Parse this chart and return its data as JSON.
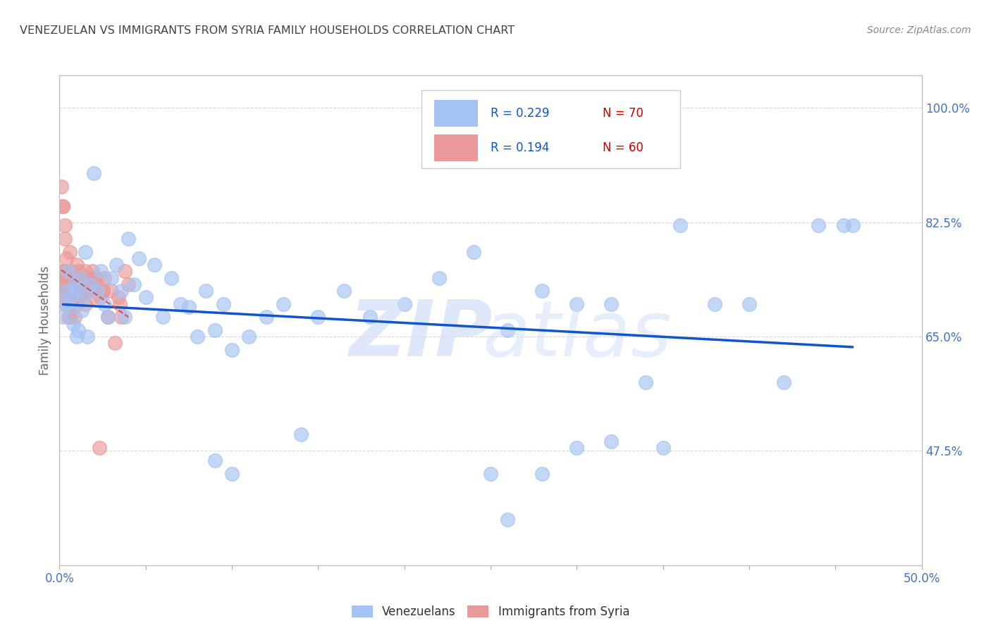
{
  "title": "VENEZUELAN VS IMMIGRANTS FROM SYRIA FAMILY HOUSEHOLDS CORRELATION CHART",
  "source": "Source: ZipAtlas.com",
  "ylabel": "Family Households",
  "yticks": [
    "47.5%",
    "65.0%",
    "82.5%",
    "100.0%"
  ],
  "ytick_vals": [
    0.475,
    0.65,
    0.825,
    1.0
  ],
  "xlim": [
    0.0,
    0.5
  ],
  "ylim": [
    0.3,
    1.05
  ],
  "legend_r1": "R = 0.229",
  "legend_n1": "N = 70",
  "legend_r2": "R = 0.194",
  "legend_n2": "N = 60",
  "blue_color": "#a4c2f4",
  "pink_color": "#ea9999",
  "blue_line_color": "#1155cc",
  "pink_line_color": "#cc4444",
  "title_color": "#434343",
  "grid_color": "#cccccc",
  "venezuelans_x": [
    0.002,
    0.003,
    0.004,
    0.005,
    0.006,
    0.007,
    0.008,
    0.009,
    0.01,
    0.01,
    0.011,
    0.012,
    0.013,
    0.014,
    0.015,
    0.016,
    0.018,
    0.02,
    0.022,
    0.024,
    0.026,
    0.028,
    0.03,
    0.033,
    0.036,
    0.038,
    0.04,
    0.043,
    0.046,
    0.05,
    0.055,
    0.06,
    0.065,
    0.07,
    0.075,
    0.08,
    0.085,
    0.09,
    0.095,
    0.1,
    0.11,
    0.12,
    0.13,
    0.14,
    0.15,
    0.165,
    0.18,
    0.2,
    0.22,
    0.24,
    0.26,
    0.28,
    0.3,
    0.32,
    0.34,
    0.36,
    0.38,
    0.4,
    0.42,
    0.44,
    0.455,
    0.46,
    0.09,
    0.1,
    0.25,
    0.26,
    0.28,
    0.3,
    0.32,
    0.35
  ],
  "venezuelans_y": [
    0.68,
    0.7,
    0.72,
    0.75,
    0.695,
    0.71,
    0.67,
    0.73,
    0.65,
    0.72,
    0.66,
    0.74,
    0.69,
    0.71,
    0.78,
    0.65,
    0.73,
    0.9,
    0.72,
    0.75,
    0.7,
    0.68,
    0.74,
    0.76,
    0.72,
    0.68,
    0.8,
    0.73,
    0.77,
    0.71,
    0.76,
    0.68,
    0.74,
    0.7,
    0.695,
    0.65,
    0.72,
    0.66,
    0.7,
    0.63,
    0.65,
    0.68,
    0.7,
    0.5,
    0.68,
    0.72,
    0.68,
    0.7,
    0.74,
    0.78,
    0.66,
    0.72,
    0.7,
    0.7,
    0.58,
    0.82,
    0.7,
    0.7,
    0.58,
    0.82,
    0.82,
    0.82,
    0.46,
    0.44,
    0.44,
    0.37,
    0.44,
    0.48,
    0.49,
    0.48
  ],
  "syria_x": [
    0.001,
    0.001,
    0.002,
    0.002,
    0.002,
    0.003,
    0.003,
    0.003,
    0.004,
    0.004,
    0.005,
    0.005,
    0.005,
    0.006,
    0.006,
    0.006,
    0.007,
    0.007,
    0.008,
    0.008,
    0.009,
    0.009,
    0.01,
    0.01,
    0.011,
    0.011,
    0.012,
    0.012,
    0.013,
    0.014,
    0.015,
    0.015,
    0.016,
    0.017,
    0.018,
    0.019,
    0.02,
    0.021,
    0.022,
    0.023,
    0.024,
    0.025,
    0.026,
    0.028,
    0.03,
    0.032,
    0.034,
    0.036,
    0.038,
    0.04,
    0.025,
    0.018,
    0.012,
    0.035,
    0.008,
    0.006,
    0.004,
    0.003,
    0.002,
    0.001
  ],
  "syria_y": [
    0.72,
    0.88,
    0.85,
    0.85,
    0.73,
    0.8,
    0.75,
    0.82,
    0.7,
    0.77,
    0.68,
    0.74,
    0.72,
    0.78,
    0.68,
    0.73,
    0.75,
    0.7,
    0.71,
    0.74,
    0.68,
    0.72,
    0.76,
    0.7,
    0.73,
    0.75,
    0.71,
    0.73,
    0.74,
    0.72,
    0.75,
    0.7,
    0.74,
    0.72,
    0.73,
    0.75,
    0.71,
    0.74,
    0.73,
    0.48,
    0.71,
    0.72,
    0.74,
    0.68,
    0.72,
    0.64,
    0.71,
    0.68,
    0.75,
    0.73,
    0.72,
    0.74,
    0.72,
    0.7,
    0.73,
    0.72,
    0.74,
    0.71,
    0.73,
    0.75
  ]
}
